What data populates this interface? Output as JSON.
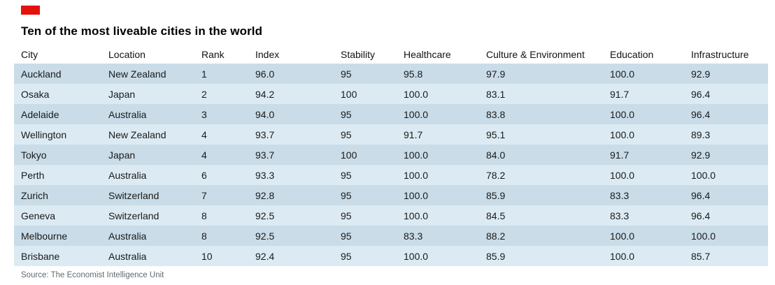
{
  "brand_color": "#e3120b",
  "title": "Ten of the most liveable cities in the world",
  "source": "Source: The Economist Intelligence Unit",
  "row_colors": {
    "dark": "#c9dce8",
    "light": "#dcebf3"
  },
  "chart_data": {
    "type": "table",
    "title": "Ten of the most liveable cities in the world",
    "columns": [
      "City",
      "Location",
      "Rank",
      "Index",
      "Stability",
      "Healthcare",
      "Culture & Environment",
      "Education",
      "Infrastructure"
    ],
    "rows": [
      [
        "Auckland",
        "New Zealand",
        "1",
        "96.0",
        "95",
        "95.8",
        "97.9",
        "100.0",
        "92.9"
      ],
      [
        "Osaka",
        "Japan",
        "2",
        "94.2",
        "100",
        "100.0",
        "83.1",
        "91.7",
        "96.4"
      ],
      [
        "Adelaide",
        "Australia",
        "3",
        "94.0",
        "95",
        "100.0",
        "83.8",
        "100.0",
        "96.4"
      ],
      [
        "Wellington",
        "New Zealand",
        "4",
        "93.7",
        "95",
        "91.7",
        "95.1",
        "100.0",
        "89.3"
      ],
      [
        "Tokyo",
        "Japan",
        "4",
        "93.7",
        "100",
        "100.0",
        "84.0",
        "91.7",
        "92.9"
      ],
      [
        "Perth",
        "Australia",
        "6",
        "93.3",
        "95",
        "100.0",
        "78.2",
        "100.0",
        "100.0"
      ],
      [
        "Zurich",
        "Switzerland",
        "7",
        "92.8",
        "95",
        "100.0",
        "85.9",
        "83.3",
        "96.4"
      ],
      [
        "Geneva",
        "Switzerland",
        "8",
        "92.5",
        "95",
        "100.0",
        "84.5",
        "83.3",
        "96.4"
      ],
      [
        "Melbourne",
        "Australia",
        "8",
        "92.5",
        "95",
        "83.3",
        "88.2",
        "100.0",
        "100.0"
      ],
      [
        "Brisbane",
        "Australia",
        "10",
        "92.4",
        "95",
        "100.0",
        "85.9",
        "100.0",
        "85.7"
      ]
    ],
    "source_label": "The Economist Intelligence Unit"
  }
}
